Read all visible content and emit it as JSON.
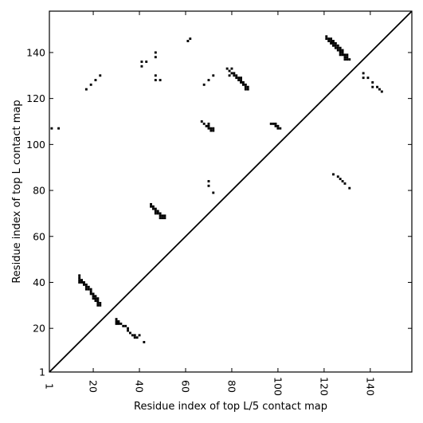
{
  "chart_data": {
    "type": "scatter",
    "title": "",
    "xlabel": "Residue index of top L/5 contact map",
    "ylabel": "Residue index of top L contact map",
    "xlim": [
      1,
      158
    ],
    "ylim": [
      1,
      158
    ],
    "x_ticks": [
      1,
      20,
      40,
      60,
      80,
      100,
      120,
      140
    ],
    "y_ticks": [
      1,
      20,
      40,
      60,
      80,
      100,
      120,
      140
    ],
    "grid": false,
    "diagonal": true,
    "marker": "square",
    "series": [
      {
        "points": [
          [
            14,
            43
          ],
          [
            14,
            42
          ],
          [
            14,
            41
          ],
          [
            15,
            41
          ],
          [
            14,
            40
          ],
          [
            15,
            40
          ],
          [
            16,
            40
          ],
          [
            16,
            39
          ],
          [
            17,
            39
          ],
          [
            17,
            38
          ],
          [
            18,
            38
          ],
          [
            18,
            37
          ],
          [
            17,
            37
          ],
          [
            19,
            37
          ],
          [
            19,
            36
          ],
          [
            19,
            35
          ],
          [
            20,
            35
          ],
          [
            20,
            34
          ],
          [
            21,
            34
          ],
          [
            21,
            33
          ],
          [
            20,
            33
          ],
          [
            22,
            33
          ],
          [
            22,
            32
          ],
          [
            21,
            32
          ],
          [
            22,
            31
          ],
          [
            23,
            31
          ],
          [
            23,
            30
          ],
          [
            22,
            30
          ],
          [
            30,
            24
          ],
          [
            30,
            23
          ],
          [
            31,
            23
          ],
          [
            31,
            22
          ],
          [
            30,
            22
          ],
          [
            32,
            22
          ],
          [
            33,
            21
          ],
          [
            34,
            21
          ],
          [
            35,
            20
          ],
          [
            35,
            19
          ],
          [
            36,
            18
          ],
          [
            37,
            17
          ],
          [
            38,
            17
          ],
          [
            38,
            16
          ],
          [
            39,
            16
          ],
          [
            40,
            17
          ],
          [
            42,
            14
          ],
          [
            45,
            74
          ],
          [
            45,
            73
          ],
          [
            46,
            73
          ],
          [
            46,
            72
          ],
          [
            47,
            72
          ],
          [
            47,
            71
          ],
          [
            48,
            71
          ],
          [
            48,
            70
          ],
          [
            47,
            70
          ],
          [
            49,
            70
          ],
          [
            49,
            69
          ],
          [
            50,
            69
          ],
          [
            50,
            68
          ],
          [
            49,
            68
          ],
          [
            51,
            69
          ],
          [
            51,
            68
          ],
          [
            41,
            136
          ],
          [
            41,
            134
          ],
          [
            43,
            136
          ],
          [
            47,
            140
          ],
          [
            47,
            138
          ],
          [
            47,
            130
          ],
          [
            47,
            128
          ],
          [
            49,
            128
          ],
          [
            17,
            124
          ],
          [
            19,
            126
          ],
          [
            21,
            128
          ],
          [
            23,
            130
          ],
          [
            2,
            107
          ],
          [
            5,
            107
          ],
          [
            61,
            145
          ],
          [
            62,
            146
          ],
          [
            67,
            110
          ],
          [
            68,
            109
          ],
          [
            69,
            108
          ],
          [
            70,
            109
          ],
          [
            70,
            108
          ],
          [
            70,
            107
          ],
          [
            71,
            107
          ],
          [
            71,
            106
          ],
          [
            72,
            107
          ],
          [
            72,
            106
          ],
          [
            68,
            126
          ],
          [
            70,
            128
          ],
          [
            72,
            130
          ],
          [
            70,
            84
          ],
          [
            70,
            82
          ],
          [
            72,
            79
          ],
          [
            78,
            133
          ],
          [
            79,
            132
          ],
          [
            80,
            133
          ],
          [
            80,
            131
          ],
          [
            81,
            131
          ],
          [
            81,
            130
          ],
          [
            82,
            130
          ],
          [
            82,
            129
          ],
          [
            83,
            129
          ],
          [
            83,
            128
          ],
          [
            84,
            128
          ],
          [
            84,
            127
          ],
          [
            85,
            127
          ],
          [
            85,
            126
          ],
          [
            86,
            125
          ],
          [
            86,
            124
          ],
          [
            87,
            124
          ],
          [
            87,
            125
          ],
          [
            84,
            129
          ],
          [
            86,
            126
          ],
          [
            79,
            130
          ],
          [
            97,
            109
          ],
          [
            98,
            109
          ],
          [
            99,
            109
          ],
          [
            100,
            108
          ],
          [
            100,
            107
          ],
          [
            101,
            107
          ],
          [
            99,
            108
          ],
          [
            121,
            147
          ],
          [
            121,
            146
          ],
          [
            122,
            146
          ],
          [
            123,
            146
          ],
          [
            122,
            145
          ],
          [
            123,
            145
          ],
          [
            124,
            145
          ],
          [
            123,
            144
          ],
          [
            124,
            144
          ],
          [
            125,
            144
          ],
          [
            124,
            143
          ],
          [
            125,
            143
          ],
          [
            126,
            143
          ],
          [
            125,
            142
          ],
          [
            126,
            142
          ],
          [
            127,
            142
          ],
          [
            126,
            141
          ],
          [
            127,
            141
          ],
          [
            128,
            141
          ],
          [
            127,
            140
          ],
          [
            128,
            140
          ],
          [
            128,
            139
          ],
          [
            127,
            139
          ],
          [
            129,
            139
          ],
          [
            130,
            139
          ],
          [
            129,
            138
          ],
          [
            130,
            138
          ],
          [
            129,
            137
          ],
          [
            130,
            137
          ],
          [
            131,
            137
          ],
          [
            137,
            131
          ],
          [
            137,
            129
          ],
          [
            139,
            129
          ],
          [
            141,
            127
          ],
          [
            141,
            125
          ],
          [
            143,
            125
          ],
          [
            144,
            124
          ],
          [
            145,
            123
          ],
          [
            124,
            87
          ],
          [
            126,
            86
          ],
          [
            127,
            85
          ],
          [
            128,
            84
          ],
          [
            129,
            83
          ],
          [
            131,
            81
          ]
        ]
      }
    ]
  }
}
